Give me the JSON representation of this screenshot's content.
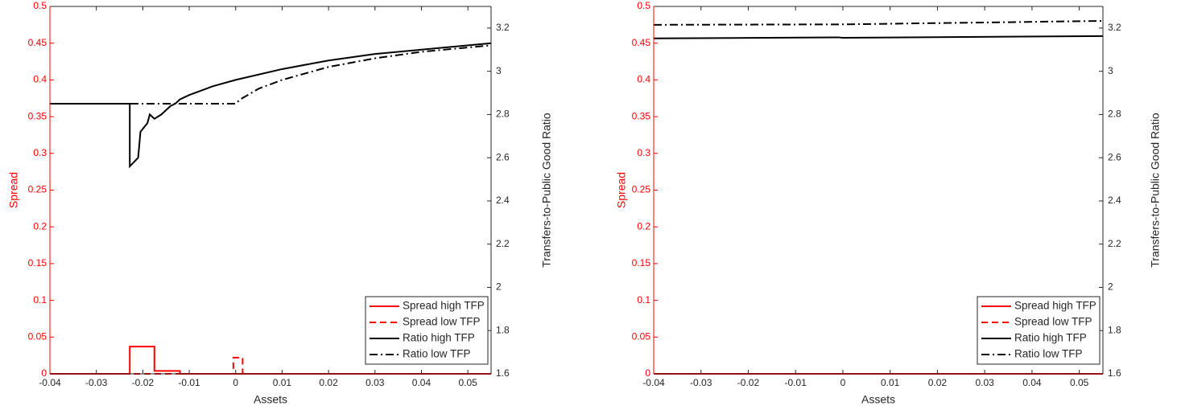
{
  "chart_data": [
    {
      "type": "line",
      "xlabel": "Assets",
      "ylabel": "Spread",
      "y2label": "Transfers-to-Public Good Ratio",
      "ycolor": "#ff0000",
      "xlim": [
        -0.04,
        0.055
      ],
      "xticks": [
        -0.04,
        -0.03,
        -0.02,
        -0.01,
        0,
        0.01,
        0.02,
        0.03,
        0.04,
        0.05
      ],
      "ylim": [
        0,
        0.5
      ],
      "yticks": [
        0,
        0.05,
        0.1,
        0.15,
        0.2,
        0.25,
        0.3,
        0.35,
        0.4,
        0.45,
        0.5
      ],
      "y2lim": [
        1.6,
        3.3
      ],
      "y2ticks": [
        1.6,
        1.8,
        2,
        2.2,
        2.4,
        2.6,
        2.8,
        3,
        3.2
      ],
      "legend": "lower right",
      "series": [
        {
          "name": "Spread high TFP",
          "color": "#ff0000",
          "dash": "solid",
          "axis": "y",
          "x": [
            -0.04,
            -0.0228,
            -0.0228,
            -0.0175,
            -0.0175,
            -0.012,
            -0.012,
            0.055
          ],
          "values": [
            0,
            0,
            0.037,
            0.037,
            0.004,
            0.004,
            0,
            0
          ]
        },
        {
          "name": "Spread low TFP",
          "color": "#ff0000",
          "dash": "dashed",
          "axis": "y",
          "x": [
            -0.04,
            -0.0005,
            -0.0005,
            0.0015,
            0.0015,
            0.055
          ],
          "values": [
            0,
            0,
            0.022,
            0.022,
            0,
            0
          ]
        },
        {
          "name": "Ratio high TFP",
          "color": "#000000",
          "dash": "solid",
          "axis": "y2",
          "x": [
            -0.04,
            -0.0228,
            -0.0228,
            -0.021,
            -0.0205,
            -0.019,
            -0.0185,
            -0.0175,
            -0.016,
            -0.014,
            -0.013,
            -0.012,
            -0.01,
            -0.005,
            0,
            0.01,
            0.02,
            0.03,
            0.04,
            0.055
          ],
          "values": [
            2.85,
            2.85,
            2.56,
            2.6,
            2.72,
            2.76,
            2.8,
            2.78,
            2.8,
            2.84,
            2.85,
            2.87,
            2.89,
            2.93,
            2.96,
            3.01,
            3.05,
            3.08,
            3.1,
            3.13
          ]
        },
        {
          "name": "Ratio low TFP",
          "color": "#000000",
          "dash": "dashdot",
          "axis": "y2",
          "x": [
            -0.04,
            0,
            0.001,
            0.005,
            0.01,
            0.02,
            0.03,
            0.04,
            0.055
          ],
          "values": [
            2.85,
            2.85,
            2.87,
            2.92,
            2.96,
            3.02,
            3.06,
            3.09,
            3.12
          ]
        }
      ]
    },
    {
      "type": "line",
      "xlabel": "Assets",
      "ylabel": "Spread",
      "y2label": "Transfers-to-Public Good Ratio",
      "ycolor": "#ff0000",
      "xlim": [
        -0.04,
        0.055
      ],
      "xticks": [
        -0.04,
        -0.03,
        -0.02,
        -0.01,
        0,
        0.01,
        0.02,
        0.03,
        0.04,
        0.05
      ],
      "ylim": [
        0,
        0.5
      ],
      "yticks": [
        0,
        0.05,
        0.1,
        0.15,
        0.2,
        0.25,
        0.3,
        0.35,
        0.4,
        0.45,
        0.5
      ],
      "y2lim": [
        1.6,
        3.3
      ],
      "y2ticks": [
        1.6,
        1.8,
        2,
        2.2,
        2.4,
        2.6,
        2.8,
        3,
        3.2
      ],
      "legend": "lower right",
      "series": [
        {
          "name": "Spread high TFP",
          "color": "#ff0000",
          "dash": "solid",
          "axis": "y",
          "x": [
            -0.04,
            0.055
          ],
          "values": [
            0,
            0
          ]
        },
        {
          "name": "Spread low TFP",
          "color": "#ff0000",
          "dash": "dashed",
          "axis": "y",
          "x": [
            -0.04,
            0.055
          ],
          "values": [
            0,
            0
          ]
        },
        {
          "name": "Ratio high TFP",
          "color": "#000000",
          "dash": "solid",
          "axis": "y2",
          "x": [
            -0.04,
            -0.001,
            0,
            0.055
          ],
          "values": [
            3.152,
            3.157,
            3.155,
            3.163
          ]
        },
        {
          "name": "Ratio low TFP",
          "color": "#000000",
          "dash": "dashdot",
          "axis": "y2",
          "x": [
            -0.04,
            0,
            0.055
          ],
          "values": [
            3.215,
            3.217,
            3.233
          ]
        }
      ]
    }
  ]
}
